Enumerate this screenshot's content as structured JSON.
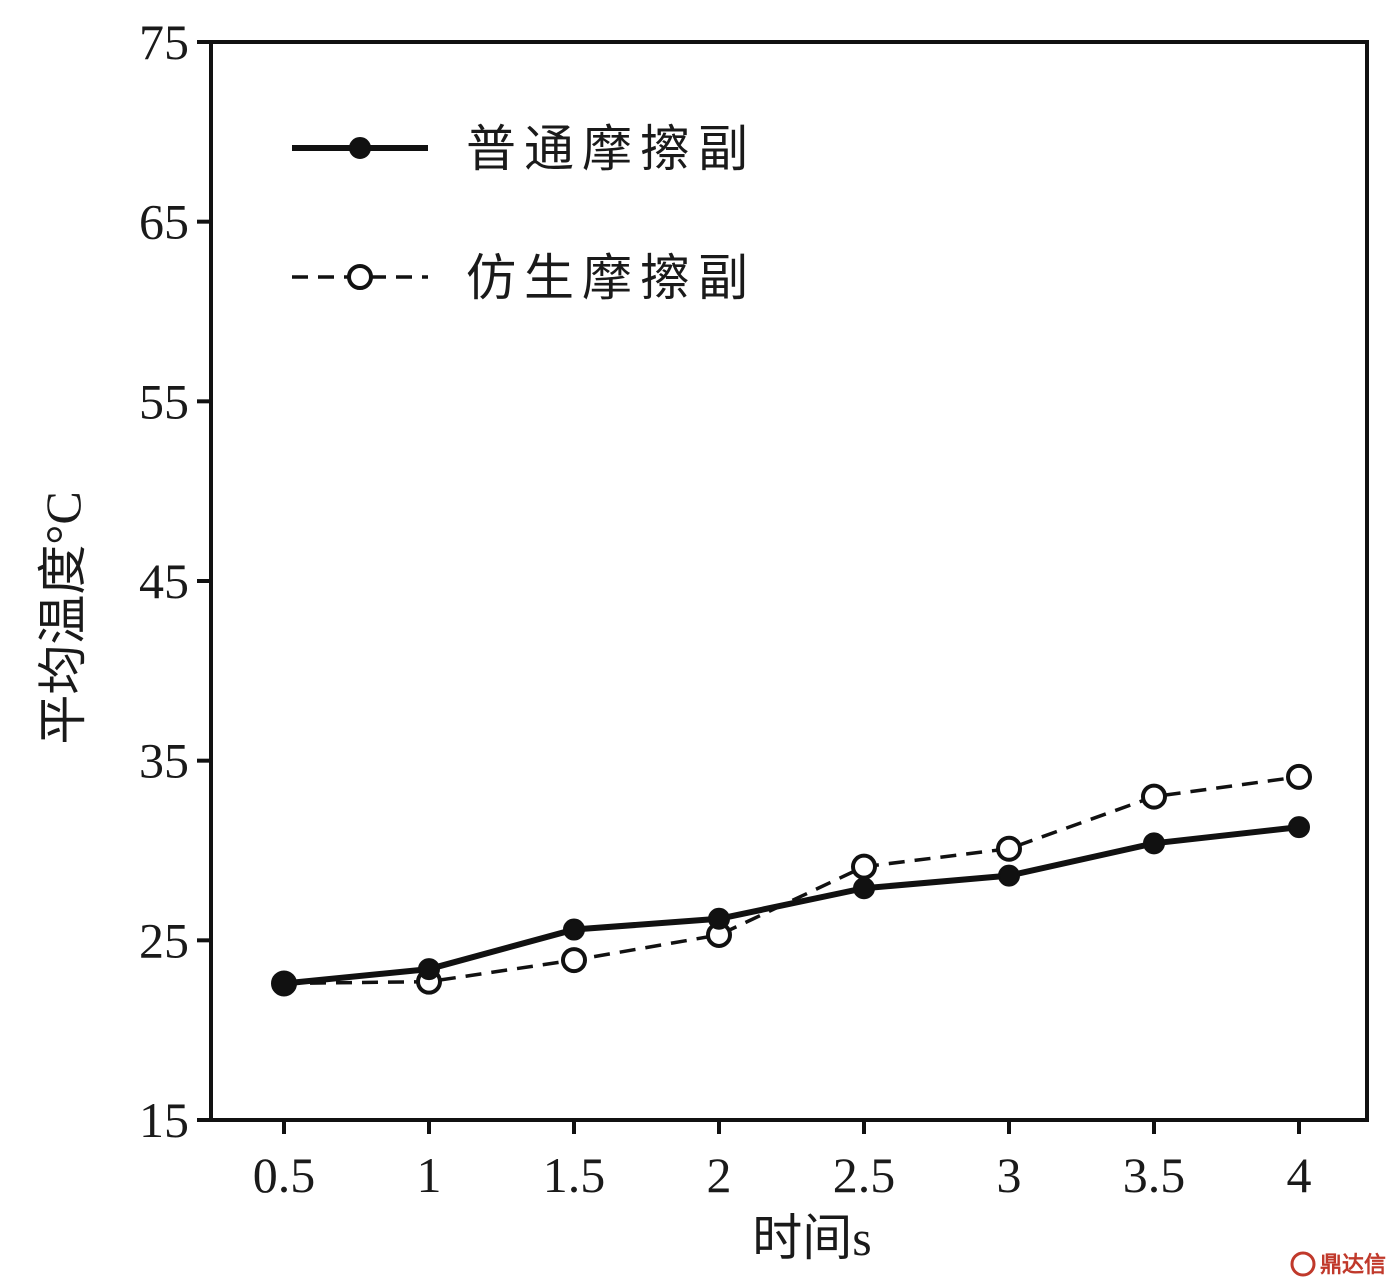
{
  "chart_data": {
    "type": "line",
    "title": "",
    "xlabel": "时间s",
    "ylabel": "平均温度°C",
    "x_categories": [
      "0.5",
      "1",
      "1.5",
      "2",
      "2.5",
      "3",
      "3.5",
      "4"
    ],
    "x": [
      0.5,
      1,
      1.5,
      2,
      2.5,
      3,
      3.5,
      4
    ],
    "yticks": [
      "15",
      "25",
      "35",
      "45",
      "55",
      "65",
      "75"
    ],
    "ylim": [
      15,
      75
    ],
    "grid": false,
    "legend_position": "top-left",
    "series": [
      {
        "name": "普通摩擦副",
        "style": "solid",
        "marker": "filled-circle",
        "color": "#111111",
        "values": [
          22.6,
          23.4,
          25.6,
          26.2,
          27.9,
          28.6,
          30.4,
          31.3
        ]
      },
      {
        "name": "仿生摩擦副",
        "style": "dashed",
        "marker": "open-circle",
        "color": "#111111",
        "values": [
          22.6,
          22.7,
          23.9,
          25.3,
          29.1,
          30.1,
          33.0,
          34.1
        ]
      }
    ]
  },
  "watermark": {
    "text": "鼎达信"
  }
}
